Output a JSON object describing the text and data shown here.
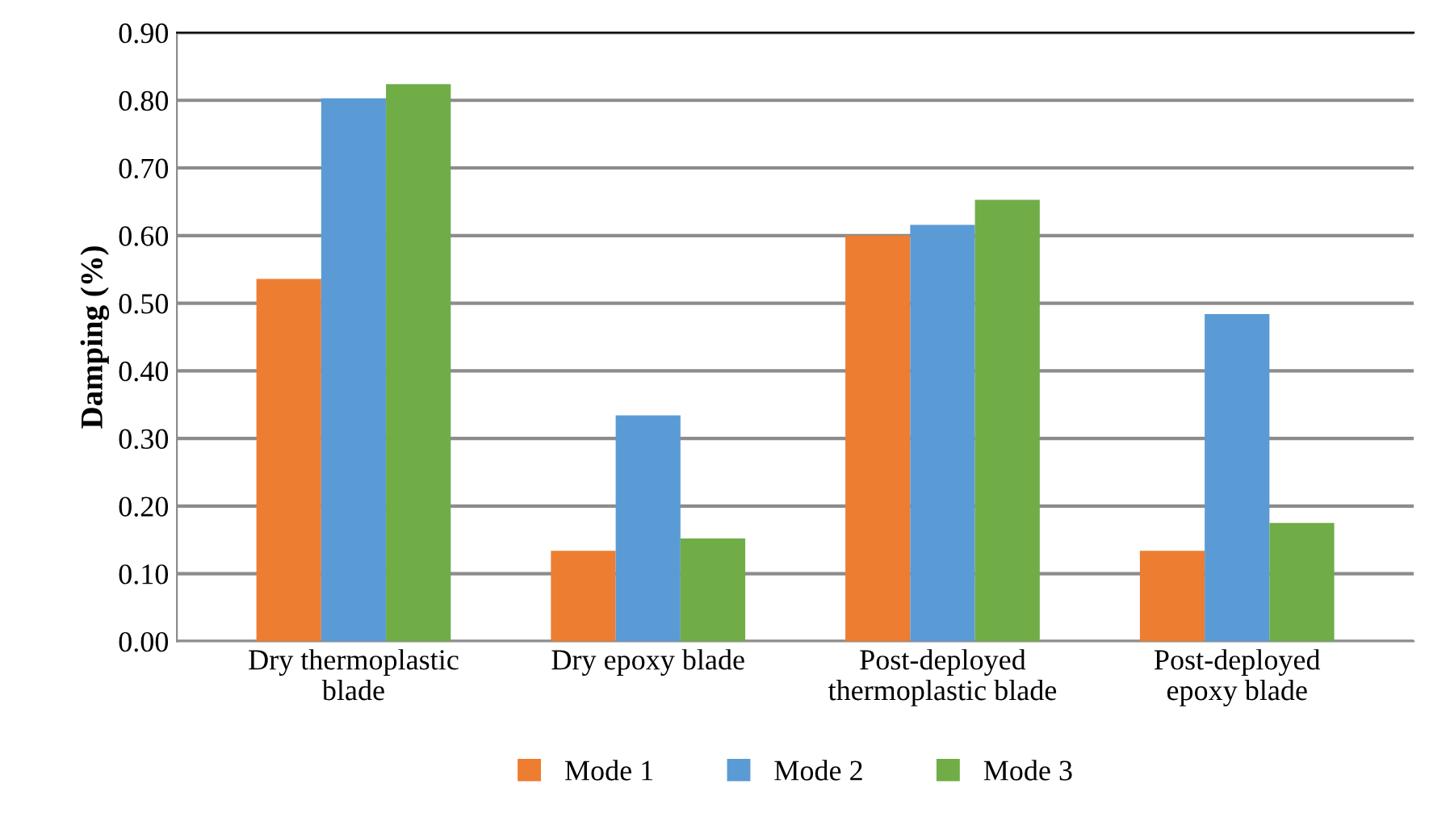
{
  "chart_data": {
    "type": "bar",
    "ylabel": "Damping (%)",
    "categories": [
      "Dry thermoplastic\nblade",
      "Dry epoxy blade",
      "Post-deployed\nthermoplastic blade",
      "Post-deployed\nepoxy blade"
    ],
    "series": [
      {
        "name": "Mode 1",
        "color": "#ed7d31",
        "values": [
          0.536,
          0.134,
          0.6,
          0.134
        ]
      },
      {
        "name": "Mode 2",
        "color": "#5b9bd5",
        "values": [
          0.803,
          0.334,
          0.616,
          0.484
        ]
      },
      {
        "name": "Mode 3",
        "color": "#70ad47",
        "values": [
          0.824,
          0.152,
          0.653,
          0.175
        ]
      }
    ],
    "ylim": [
      0,
      0.9
    ],
    "yticks": [
      {
        "value": 0,
        "label": "0.00"
      },
      {
        "value": 0.1,
        "label": "0.10"
      },
      {
        "value": 0.2,
        "label": "0.20"
      },
      {
        "value": 0.3,
        "label": "0.30"
      },
      {
        "value": 0.4,
        "label": "0.40"
      },
      {
        "value": 0.5,
        "label": "0.50"
      },
      {
        "value": 0.6,
        "label": "0.60"
      },
      {
        "value": 0.7,
        "label": "0.70"
      },
      {
        "value": 0.8,
        "label": "0.80"
      },
      {
        "value": 0.9,
        "label": "0.90"
      }
    ],
    "grid": "y",
    "legend": "bottom"
  }
}
